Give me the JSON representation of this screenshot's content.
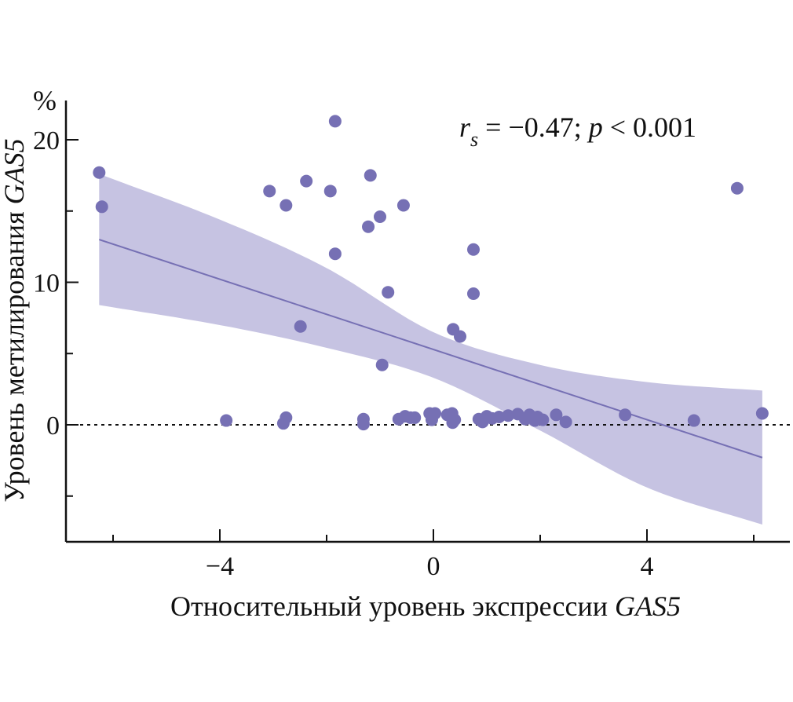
{
  "chart_data": {
    "type": "scatter",
    "title": "",
    "xlabel": "Относительный уровень экспрессии",
    "xlabel_gene": "GAS5",
    "ylabel": "Уровень метилирования",
    "ylabel_gene": "GAS5",
    "y_unit": "%",
    "annotation": {
      "stat_symbol": "r",
      "stat_subscript": "s",
      "stat_text": " = −0.47; ",
      "p_symbol": "p",
      "p_text": " < 0.001"
    },
    "xlim": [
      -7.0,
      6.6
    ],
    "ylim": [
      -8.0,
      22.8
    ],
    "x_major_ticks": [
      -4,
      0,
      4
    ],
    "x_major_tick_labels": [
      "−4",
      "0",
      "4"
    ],
    "x_minor_ticks": [
      -6,
      -2,
      2,
      6
    ],
    "y_major_ticks": [
      0,
      10,
      20
    ],
    "y_major_tick_labels": [
      "0",
      "10",
      "20"
    ],
    "y_minor_ticks": [
      -5,
      5,
      15
    ],
    "reference_line": {
      "y": 0,
      "style": "dotted"
    },
    "grid": false,
    "legend": "none",
    "colors": {
      "points": "#7670b4",
      "line": "#7670b4",
      "band": "#c6c3e2",
      "axis": "#111111"
    },
    "regression": {
      "x_range": [
        -6.26,
        6.16
      ],
      "y_at_start": 13.0,
      "y_at_end": -2.3,
      "ci_upper": [
        [
          -6.26,
          17.6
        ],
        [
          -4.0,
          14.4
        ],
        [
          -2.0,
          11.0
        ],
        [
          0.0,
          6.5
        ],
        [
          2.0,
          4.2
        ],
        [
          4.0,
          3.0
        ],
        [
          6.16,
          2.4
        ]
      ],
      "ci_lower": [
        [
          -6.26,
          8.4
        ],
        [
          -4.0,
          7.0
        ],
        [
          -2.0,
          5.4
        ],
        [
          0.0,
          3.3
        ],
        [
          2.0,
          -0.4
        ],
        [
          4.0,
          -4.4
        ],
        [
          6.16,
          -7.0
        ]
      ]
    },
    "points": [
      {
        "x": -6.26,
        "y": 17.7
      },
      {
        "x": -6.21,
        "y": 15.3
      },
      {
        "x": -3.07,
        "y": 16.4
      },
      {
        "x": -2.76,
        "y": 15.4
      },
      {
        "x": -2.38,
        "y": 17.1
      },
      {
        "x": -1.93,
        "y": 16.4
      },
      {
        "x": -1.84,
        "y": 21.3
      },
      {
        "x": -1.84,
        "y": 12.0
      },
      {
        "x": -1.18,
        "y": 17.5
      },
      {
        "x": -1.22,
        "y": 13.9
      },
      {
        "x": -1.0,
        "y": 14.6
      },
      {
        "x": -0.56,
        "y": 15.4
      },
      {
        "x": -0.85,
        "y": 9.3
      },
      {
        "x": 0.75,
        "y": 12.3
      },
      {
        "x": 0.75,
        "y": 9.2
      },
      {
        "x": -2.49,
        "y": 6.9
      },
      {
        "x": -0.96,
        "y": 4.2
      },
      {
        "x": 0.37,
        "y": 6.7
      },
      {
        "x": 0.5,
        "y": 6.2
      },
      {
        "x": 5.69,
        "y": 16.6
      },
      {
        "x": 3.59,
        "y": 0.7
      },
      {
        "x": 4.88,
        "y": 0.3
      },
      {
        "x": 6.16,
        "y": 0.8
      },
      {
        "x": -3.88,
        "y": 0.3
      },
      {
        "x": -2.76,
        "y": 0.5
      },
      {
        "x": -2.81,
        "y": 0.1
      },
      {
        "x": -1.31,
        "y": 0.4
      },
      {
        "x": -1.31,
        "y": 0.05
      },
      {
        "x": -0.65,
        "y": 0.4
      },
      {
        "x": -0.53,
        "y": 0.6
      },
      {
        "x": -0.43,
        "y": 0.5
      },
      {
        "x": -0.35,
        "y": 0.5
      },
      {
        "x": -0.07,
        "y": 0.8
      },
      {
        "x": 0.03,
        "y": 0.8
      },
      {
        "x": -0.03,
        "y": 0.35
      },
      {
        "x": 0.26,
        "y": 0.7
      },
      {
        "x": 0.35,
        "y": 0.8
      },
      {
        "x": 0.4,
        "y": 0.35
      },
      {
        "x": 0.36,
        "y": 0.15
      },
      {
        "x": 0.85,
        "y": 0.4
      },
      {
        "x": 0.92,
        "y": 0.2
      },
      {
        "x": 1.0,
        "y": 0.6
      },
      {
        "x": 1.1,
        "y": 0.45
      },
      {
        "x": 1.23,
        "y": 0.55
      },
      {
        "x": 1.4,
        "y": 0.65
      },
      {
        "x": 1.58,
        "y": 0.75
      },
      {
        "x": 1.72,
        "y": 0.4
      },
      {
        "x": 1.8,
        "y": 0.7
      },
      {
        "x": 1.95,
        "y": 0.55
      },
      {
        "x": 2.05,
        "y": 0.35
      },
      {
        "x": 1.9,
        "y": 0.3
      },
      {
        "x": 2.3,
        "y": 0.7
      },
      {
        "x": 2.48,
        "y": 0.2
      }
    ]
  }
}
